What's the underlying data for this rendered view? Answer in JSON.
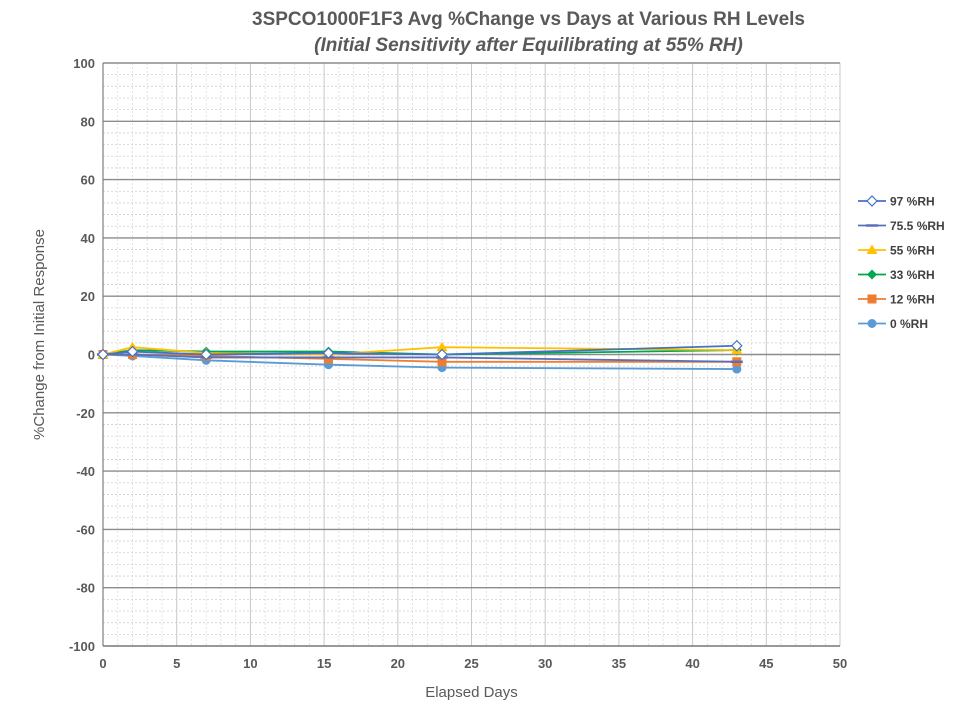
{
  "chart_data": {
    "type": "line",
    "title": "3SPCO1000F1F3  Avg  %Change  vs Days at Various RH Levels",
    "subtitle": "(Initial Sensitivity after Equilibrating at 55% RH)",
    "xlabel": "Elapsed Days",
    "ylabel": "%Change  from Initial Response",
    "xlim": [
      0,
      50
    ],
    "ylim": [
      -100,
      100
    ],
    "xticks": [
      0,
      5,
      10,
      15,
      20,
      25,
      30,
      35,
      40,
      45,
      50
    ],
    "yticks": [
      100,
      80,
      60,
      40,
      20,
      0,
      -20,
      -40,
      -60,
      -80,
      -100
    ],
    "grid": true,
    "legend_position": "right",
    "series": [
      {
        "name": "97 %RH",
        "color": "#4472c4",
        "marker": "diamond-open",
        "x": [
          0,
          2,
          7,
          15.3,
          23,
          43
        ],
        "y": [
          0,
          1,
          0,
          0.5,
          0,
          3
        ]
      },
      {
        "name": "75.5 %RH",
        "color": "#5b6fb8",
        "marker": "dash",
        "x": [
          0,
          2,
          7,
          15.3,
          23,
          43
        ],
        "y": [
          0,
          0,
          -1,
          -1,
          -1,
          -2.5
        ]
      },
      {
        "name": "55 %RH",
        "color": "#ffc000",
        "marker": "triangle",
        "x": [
          0,
          2,
          7,
          15.3,
          23,
          43
        ],
        "y": [
          0,
          2.5,
          0.5,
          0,
          2.5,
          1.5
        ]
      },
      {
        "name": "33 %RH",
        "color": "#00a651",
        "marker": "diamond",
        "x": [
          0,
          2,
          7,
          15.3,
          23,
          43
        ],
        "y": [
          0,
          1.5,
          1,
          1,
          0,
          1.5
        ]
      },
      {
        "name": "12 %RH",
        "color": "#ed7d31",
        "marker": "square",
        "x": [
          0,
          2,
          7,
          15.3,
          23,
          43
        ],
        "y": [
          0,
          0,
          -0.5,
          -1.5,
          -2.5,
          -2.5
        ]
      },
      {
        "name": "0 %RH",
        "color": "#5b9bd5",
        "marker": "circle",
        "x": [
          0,
          2,
          7,
          15.3,
          23,
          43
        ],
        "y": [
          0,
          -0.5,
          -2,
          -3.5,
          -4.5,
          -5
        ]
      }
    ]
  }
}
